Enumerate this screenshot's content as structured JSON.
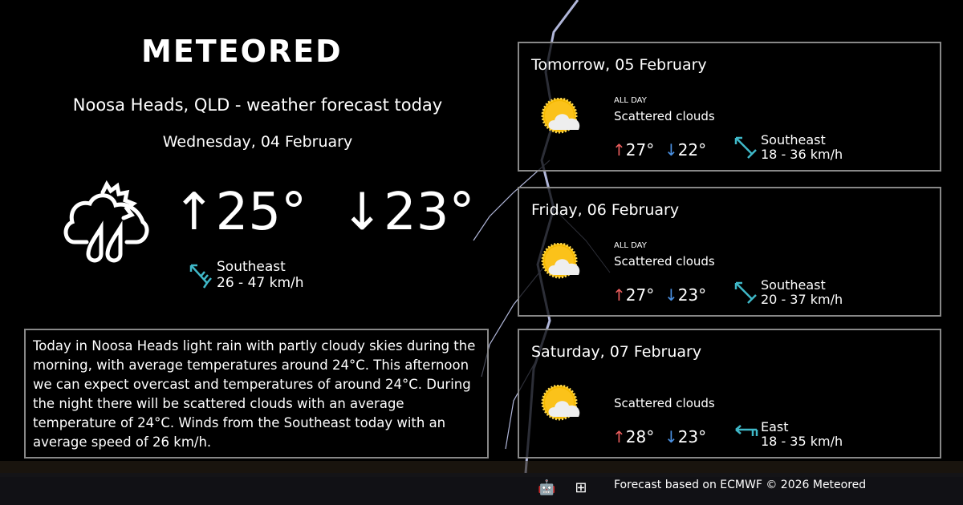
{
  "brand": "METEORED",
  "header": {
    "title": "Noosa Heads, QLD - weather forecast today",
    "date": "Wednesday, 04 February"
  },
  "today": {
    "icon": "rain-partly-cloudy-icon",
    "max": "25°",
    "min": "23°",
    "wind_dir": "Southeast",
    "wind_speed": "26 - 47 km/h"
  },
  "summary": "Today in Noosa Heads light rain with partly cloudy skies during the morning, with average temperatures around 24°C. This afternoon we can expect overcast and temperatures of around 24°C. During the night there will be scattered clouds with an average temperature of 24°C. Winds from the Southeast today with an average speed of 26 km/h.",
  "forecast": [
    {
      "date": "Tomorrow, 05 February",
      "period": "ALL DAY",
      "condition": "Scattered clouds",
      "max": "27°",
      "min": "22°",
      "wind_dir": "Southeast",
      "wind_speed": "18 - 36 km/h"
    },
    {
      "date": "Friday, 06 February",
      "period": "ALL DAY",
      "condition": "Scattered clouds",
      "max": "27°",
      "min": "23°",
      "wind_dir": "Southeast",
      "wind_speed": "20 - 37 km/h"
    },
    {
      "date": "Saturday, 07 February",
      "period": "",
      "condition": "Scattered clouds",
      "max": "28°",
      "min": "23°",
      "wind_dir": "East",
      "wind_speed": "18 - 35 km/h"
    }
  ],
  "footer": {
    "text": "Forecast based on ECMWF © 2026 Meteored",
    "platforms": [
      "android-icon",
      "apple-icon",
      "windows-icon"
    ]
  },
  "colors": {
    "max": "#e85c5c",
    "min": "#4a90e2",
    "wind": "#3fb8c8",
    "border": "#888888"
  }
}
